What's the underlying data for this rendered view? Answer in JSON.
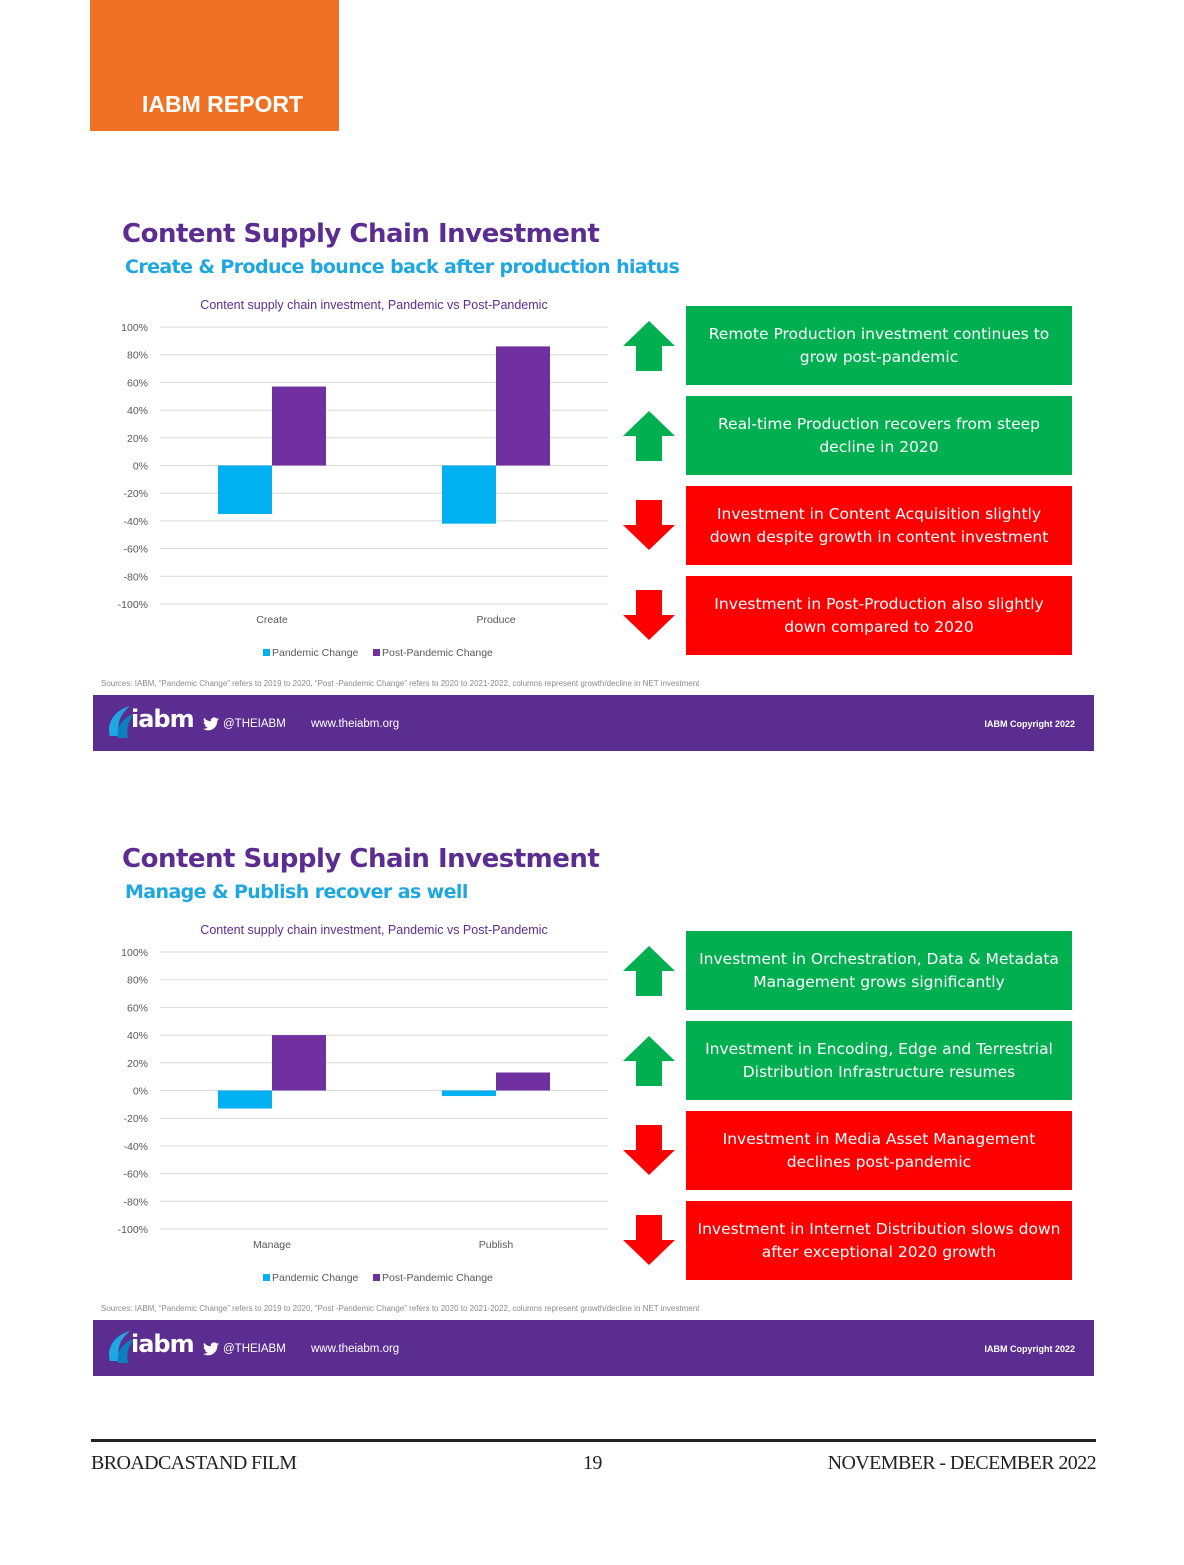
{
  "header": {
    "label": "IABM REPORT"
  },
  "slides": [
    {
      "title": "Content Supply Chain Investment",
      "subtitle": "Create & Produce bounce back after production hiatus",
      "source": "Sources: IABM, “Pandemic Change” refers to 2019 to 2020, “Post -Pandemic Change” refers to 2020 to 2021-2022, columns represent growth/decline in NET investment",
      "cards": [
        {
          "text": "Remote Production investment continues to grow post-pandemic",
          "direction": "up"
        },
        {
          "text": "Real-time Production recovers from steep decline in 2020",
          "direction": "up"
        },
        {
          "text": "Investment in Content Acquisition slightly down despite growth in content investment",
          "direction": "down"
        },
        {
          "text": "Investment in Post-Production also slightly down compared to 2020",
          "direction": "down"
        }
      ],
      "footer": {
        "logo": "iabm",
        "twitter": "@THEIABM",
        "website": "www.theiabm.org",
        "copyright": "IABM Copyright 2022"
      }
    },
    {
      "title": "Content Supply Chain Investment",
      "subtitle": "Manage & Publish recover as well",
      "source": "Sources: IABM, “Pandemic Change” refers to 2019 to 2020, “Post -Pandemic Change” refers to 2020 to 2021-2022, columns represent growth/decline in NET investment",
      "cards": [
        {
          "text": "Investment in Orchestration, Data & Metadata Management grows significantly",
          "direction": "up"
        },
        {
          "text": "Investment in Encoding, Edge and Terrestrial Distribution Infrastructure resumes",
          "direction": "up"
        },
        {
          "text": "Investment in Media Asset Management declines post-pandemic",
          "direction": "down"
        },
        {
          "text": "Investment in Internet Distribution slows down after exceptional 2020 growth",
          "direction": "down"
        }
      ],
      "footer": {
        "logo": "iabm",
        "twitter": "@THEIABM",
        "website": "www.theiabm.org",
        "copyright": "IABM Copyright 2022"
      }
    }
  ],
  "chart_data": [
    {
      "type": "bar",
      "title": "Content supply chain investment, Pandemic vs Post-Pandemic",
      "categories": [
        "Create",
        "Produce"
      ],
      "series": [
        {
          "name": "Pandemic Change",
          "values": [
            -35,
            -42
          ],
          "color": "#00b0f0"
        },
        {
          "name": "Post-Pandemic Change",
          "values": [
            57,
            86
          ],
          "color": "#7030a0"
        }
      ],
      "ylim": [
        -100,
        100
      ],
      "yticks": [
        "100%",
        "80%",
        "60%",
        "40%",
        "20%",
        "0%",
        "-20%",
        "-40%",
        "-60%",
        "-80%",
        "-100%"
      ],
      "grid": true,
      "legend": "bottom"
    },
    {
      "type": "bar",
      "title": "Content supply chain investment, Pandemic vs Post-Pandemic",
      "categories": [
        "Manage",
        "Publish"
      ],
      "series": [
        {
          "name": "Pandemic Change",
          "values": [
            -13,
            -4
          ],
          "color": "#00b0f0"
        },
        {
          "name": "Post-Pandemic Change",
          "values": [
            40,
            13
          ],
          "color": "#7030a0"
        }
      ],
      "ylim": [
        -100,
        100
      ],
      "yticks": [
        "100%",
        "80%",
        "60%",
        "40%",
        "20%",
        "0%",
        "-20%",
        "-40%",
        "-60%",
        "-80%",
        "-100%"
      ],
      "grid": true,
      "legend": "bottom"
    }
  ],
  "page_footer": {
    "publication": "BROADCASTAND FILM",
    "page_number": "19",
    "issue": "NOVEMBER - DECEMBER 2022"
  }
}
